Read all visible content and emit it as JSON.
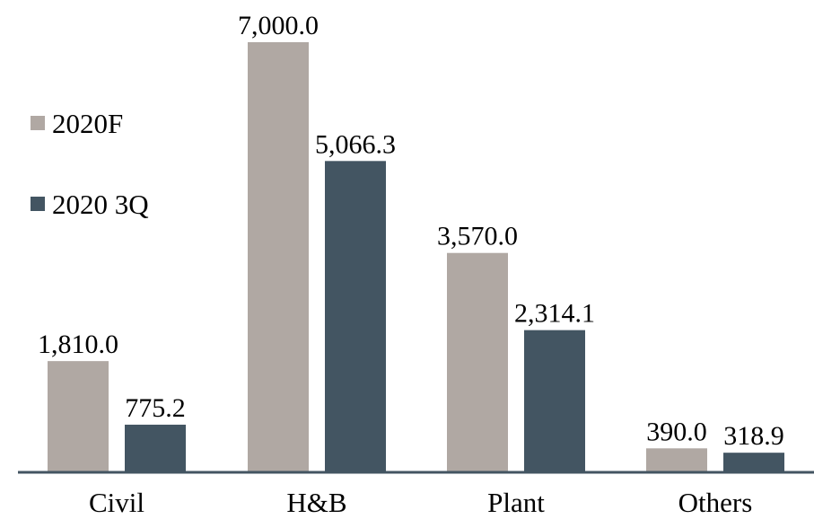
{
  "chart_data": {
    "type": "bar",
    "categories": [
      "Civil",
      "H&B",
      "Plant",
      "Others"
    ],
    "series": [
      {
        "name": "2020F",
        "values": [
          1810.0,
          7000.0,
          3570.0,
          390.0
        ],
        "labels": [
          "1,810.0",
          "7,000.0",
          "3,570.0",
          "390.0"
        ],
        "color": "#b0a8a3"
      },
      {
        "name": "2020 3Q",
        "values": [
          775.2,
          5066.3,
          2314.1,
          318.9
        ],
        "labels": [
          "775.2",
          "5,066.3",
          "2,314.1",
          "318.9"
        ],
        "color": "#435562"
      }
    ],
    "title": "",
    "xlabel": "",
    "ylabel": "",
    "ylim": [
      0,
      7000
    ],
    "grid": false,
    "legend": "left",
    "axis_color": "#435562"
  }
}
